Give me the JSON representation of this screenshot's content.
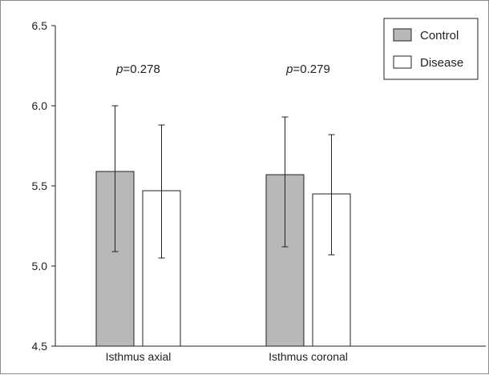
{
  "chart_data": {
    "type": "bar",
    "categories": [
      "Isthmus axial",
      "Isthmus coronal"
    ],
    "series": [
      {
        "name": "Control",
        "values": [
          5.59,
          5.57
        ],
        "err_low": [
          5.09,
          5.12
        ],
        "err_high": [
          6.0,
          5.93
        ],
        "color": "#b8b8b8"
      },
      {
        "name": "Disease",
        "values": [
          5.47,
          5.45
        ],
        "err_low": [
          5.05,
          5.07
        ],
        "err_high": [
          5.88,
          5.82
        ],
        "color": "#ffffff"
      }
    ],
    "ylim": [
      4.5,
      6.5
    ],
    "yticks": [
      "4.5",
      "5.0",
      "5.5",
      "6.0",
      "6.5"
    ],
    "annotations": [
      {
        "p_label": "p",
        "p_value": "=0.278"
      },
      {
        "p_label": "p",
        "p_value": "=0.279"
      }
    ],
    "legend_position": "top-right",
    "grid": false
  }
}
